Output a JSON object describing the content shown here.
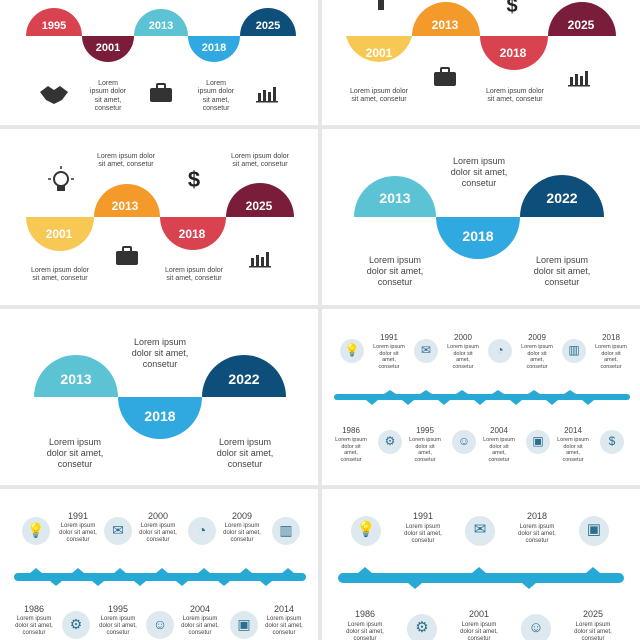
{
  "colors": {
    "red": "#d9434f",
    "maroon": "#7a1d3a",
    "cyan": "#5bc3d3",
    "blue": "#2fa9df",
    "navy": "#0d4f7a",
    "yellow": "#f7c954",
    "orange": "#f39a2b",
    "bar": "#27a9d6",
    "iconBg": "#dde9ef"
  },
  "lorem": "Lorem ipsum dolor sit amet, consetur",
  "slide1": {
    "years": [
      "1995",
      "2001",
      "2013",
      "2018",
      "2025"
    ]
  },
  "slide2": {
    "years": [
      "2001",
      "2013",
      "2018",
      "2025"
    ]
  },
  "slide3": {
    "years": [
      "2001",
      "2013",
      "2018",
      "2025"
    ]
  },
  "slide4": {
    "years": [
      "2013",
      "2018",
      "2022"
    ]
  },
  "slide5": {
    "years": [
      "2013",
      "2018",
      "2022"
    ]
  },
  "slide6": {
    "top": [
      "1991",
      "2000",
      "2009",
      "2018"
    ],
    "bottom": [
      "1986",
      "1995",
      "2004",
      "2014"
    ]
  },
  "slide7": {
    "top": [
      "1991",
      "2000",
      "2009"
    ],
    "bottom": [
      "1986",
      "1995",
      "2004",
      "2014"
    ]
  },
  "slide8": {
    "top": [
      "1991",
      "2018"
    ],
    "bottom": [
      "1986",
      "2001",
      "2025"
    ]
  }
}
